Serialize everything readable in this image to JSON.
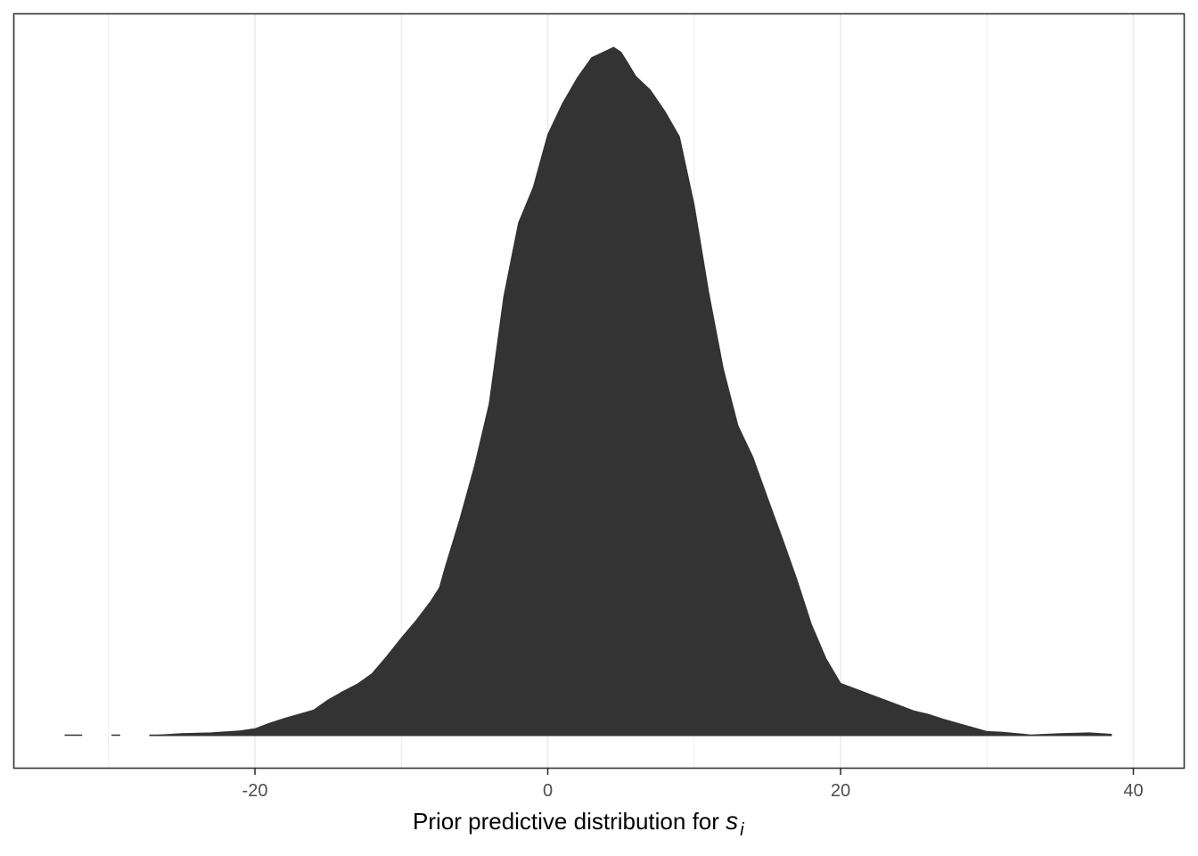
{
  "chart_data": {
    "type": "area",
    "xlabel": "Prior predictive distribution for ",
    "xlabel_var": "s",
    "xlabel_sub": "i",
    "ylabel": "",
    "xlim": [
      -36.5,
      43.5
    ],
    "x_ticks": [
      -20,
      0,
      20,
      40
    ],
    "x_tick_labels": [
      "-20",
      "0",
      "20",
      "40"
    ],
    "x_minor_gridlines": [
      -30,
      -10,
      10,
      30
    ],
    "grid": true,
    "y_axis_labels": false,
    "fill_color": "#333333",
    "panel_border_color": "#333333",
    "gridline_color": "#ebebeb",
    "tail_segments": [
      [
        -33.0,
        -31.8
      ],
      [
        -29.8,
        -29.2
      ],
      [
        -27.2,
        -26.0
      ]
    ],
    "density_x": [
      -27.2,
      -25,
      -23,
      -21,
      -20,
      -19,
      -18,
      -16,
      -15,
      -14,
      -13,
      -12,
      -11,
      -10,
      -9,
      -8,
      -7.4,
      -7,
      -6,
      -5,
      -4,
      -3,
      -2,
      -1,
      0,
      1,
      2,
      3,
      4,
      4.5,
      5,
      5.5,
      6,
      7,
      8,
      9,
      10,
      11,
      12,
      13,
      14,
      15,
      16,
      17,
      18,
      19,
      20,
      21,
      22,
      23,
      24,
      25,
      26,
      27,
      28,
      29,
      30,
      31,
      33,
      35,
      37,
      38.5
    ],
    "density_y": [
      0.0,
      0.003,
      0.004,
      0.007,
      0.01,
      0.018,
      0.025,
      0.037,
      0.052,
      0.064,
      0.075,
      0.09,
      0.115,
      0.142,
      0.167,
      0.195,
      0.215,
      0.245,
      0.315,
      0.392,
      0.482,
      0.638,
      0.745,
      0.796,
      0.873,
      0.918,
      0.955,
      0.985,
      0.995,
      1.0,
      0.993,
      0.976,
      0.958,
      0.938,
      0.907,
      0.87,
      0.771,
      0.643,
      0.532,
      0.45,
      0.405,
      0.346,
      0.288,
      0.228,
      0.162,
      0.112,
      0.076,
      0.068,
      0.06,
      0.052,
      0.044,
      0.036,
      0.031,
      0.024,
      0.018,
      0.012,
      0.006,
      0.005,
      0.001,
      0.003,
      0.004,
      0.002
    ]
  }
}
